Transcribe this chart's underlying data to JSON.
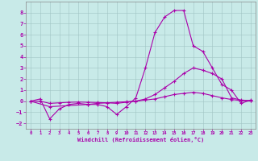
{
  "xlabel": "Windchill (Refroidissement éolien,°C)",
  "bg_color": "#c8eae8",
  "line_color": "#aa00aa",
  "xlim": [
    -0.5,
    23.5
  ],
  "ylim": [
    -2.5,
    9.0
  ],
  "xticks": [
    0,
    1,
    2,
    3,
    4,
    5,
    6,
    7,
    8,
    9,
    10,
    11,
    12,
    13,
    14,
    15,
    16,
    17,
    18,
    19,
    20,
    21,
    22,
    23
  ],
  "yticks": [
    -2,
    -1,
    0,
    1,
    2,
    3,
    4,
    5,
    6,
    7,
    8
  ],
  "line1_x": [
    0,
    1,
    2,
    3,
    4,
    5,
    6,
    7,
    8,
    9,
    10,
    11,
    12,
    13,
    14,
    15,
    16,
    17,
    18,
    19,
    20,
    21,
    22,
    23
  ],
  "line1_y": [
    0.0,
    0.2,
    -1.6,
    -0.7,
    -0.3,
    -0.2,
    -0.3,
    -0.3,
    -0.5,
    -1.2,
    -0.5,
    0.3,
    3.0,
    6.2,
    7.6,
    8.2,
    8.2,
    5.0,
    4.5,
    3.0,
    1.5,
    1.0,
    -0.2,
    0.1
  ],
  "line2_x": [
    0,
    2,
    6,
    7,
    8,
    9,
    10,
    11,
    12,
    13,
    14,
    15,
    16,
    17,
    18,
    19,
    20,
    21,
    22,
    23
  ],
  "line2_y": [
    0.0,
    -0.5,
    -0.3,
    -0.2,
    -0.15,
    -0.1,
    -0.05,
    0.0,
    0.2,
    0.6,
    1.2,
    1.8,
    2.5,
    3.0,
    2.8,
    2.5,
    2.0,
    0.3,
    0.1,
    0.05
  ],
  "line3_x": [
    0,
    1,
    2,
    3,
    4,
    5,
    6,
    7,
    8,
    9,
    10,
    11,
    12,
    13,
    14,
    15,
    16,
    17,
    18,
    19,
    20,
    21,
    22,
    23
  ],
  "line3_y": [
    -0.05,
    0.0,
    -0.2,
    -0.15,
    -0.1,
    -0.08,
    -0.1,
    -0.12,
    -0.15,
    -0.2,
    -0.1,
    0.0,
    0.1,
    0.2,
    0.4,
    0.6,
    0.7,
    0.8,
    0.7,
    0.5,
    0.3,
    0.15,
    0.05,
    0.02
  ]
}
